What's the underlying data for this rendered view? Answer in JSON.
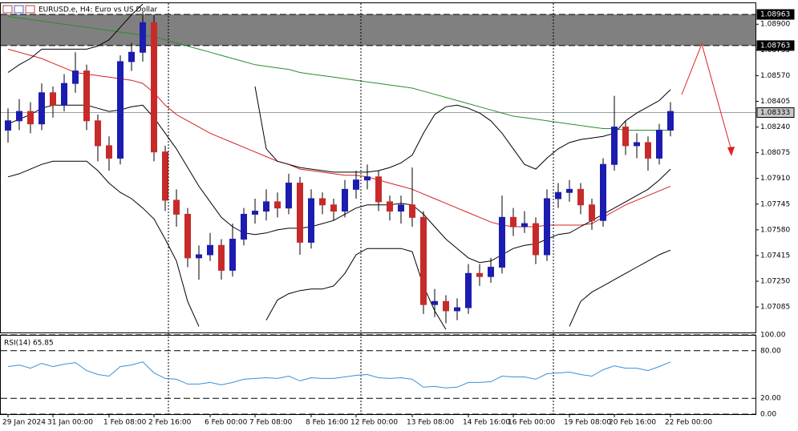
{
  "chart_data": {
    "type": "candlestick",
    "title": "EURUSD.e, H4:  Euro vs US Dollar",
    "categories": [
      "29 Jan 2024",
      null,
      null,
      null,
      "31 Jan 00:00",
      null,
      null,
      null,
      null,
      "1 Feb 08:00",
      null,
      null,
      null,
      "2 Feb 16:00",
      null,
      null,
      null,
      null,
      "6 Feb 00:00",
      null,
      null,
      null,
      "7 Feb 08:00",
      null,
      null,
      null,
      null,
      "8 Feb 16:00",
      null,
      null,
      null,
      "12 Feb 00:00",
      null,
      null,
      null,
      null,
      "13 Feb 08:00",
      null,
      null,
      null,
      null,
      "14 Feb 16:00",
      null,
      null,
      null,
      "16 Feb 00:00",
      null,
      null,
      null,
      null,
      "19 Feb 08:00",
      null,
      null,
      null,
      "20 Feb 16:00",
      null,
      null,
      null,
      null,
      "22 Feb 00:00"
    ],
    "open": [
      1.0822,
      1.0828,
      1.0834,
      1.0826,
      1.0846,
      1.0838,
      1.0852,
      1.086,
      1.0828,
      1.0812,
      1.0804,
      1.0866,
      1.0872,
      1.0891,
      1.0808,
      1.0777,
      1.0768,
      1.074,
      1.0742,
      1.0748,
      1.0732,
      1.0752,
      1.0768,
      1.077,
      1.0776,
      1.0772,
      1.0788,
      1.075,
      1.0778,
      1.0774,
      1.077,
      1.0784,
      1.079,
      1.0792,
      1.0776,
      1.077,
      1.0774,
      1.0766,
      1.071,
      1.0712,
      1.0706,
      1.0708,
      1.073,
      1.0728,
      1.0734,
      1.0766,
      1.076,
      1.0762,
      1.0742,
      1.0778,
      1.0782,
      1.0784,
      1.0774,
      1.0764,
      1.08,
      1.0824,
      1.0812,
      1.0814,
      1.0804,
      1.0822
    ],
    "high": [
      1.0836,
      1.0842,
      1.084,
      1.0852,
      1.085,
      1.0858,
      1.0872,
      1.0864,
      1.0832,
      1.0818,
      1.087,
      1.0878,
      1.0898,
      1.0896,
      1.0812,
      1.0784,
      1.0772,
      1.0748,
      1.0756,
      1.0752,
      1.0762,
      1.0772,
      1.0778,
      1.0784,
      1.0782,
      1.0794,
      1.0792,
      1.0784,
      1.0782,
      1.0778,
      1.079,
      1.0796,
      1.08,
      1.0796,
      1.078,
      1.078,
      1.0798,
      1.077,
      1.072,
      1.0716,
      1.0714,
      1.0736,
      1.0736,
      1.074,
      1.078,
      1.0772,
      1.077,
      1.0766,
      1.0784,
      1.0788,
      1.079,
      1.0788,
      1.0778,
      1.0804,
      1.0844,
      1.0828,
      1.082,
      1.0818,
      1.0826,
      1.084
    ],
    "low": [
      1.0814,
      1.0822,
      1.082,
      1.0822,
      1.083,
      1.0834,
      1.0846,
      1.0822,
      1.0802,
      1.0796,
      1.08,
      1.086,
      1.0866,
      1.0802,
      1.077,
      1.076,
      1.0734,
      1.0726,
      1.0738,
      1.0726,
      1.0728,
      1.0748,
      1.0762,
      1.0764,
      1.0766,
      1.0768,
      1.0742,
      1.0746,
      1.0768,
      1.0764,
      1.0766,
      1.0778,
      1.0784,
      1.077,
      1.0764,
      1.0762,
      1.076,
      1.0704,
      1.0702,
      1.0698,
      1.07,
      1.0704,
      1.0722,
      1.0724,
      1.073,
      1.0754,
      1.0756,
      1.0736,
      1.0738,
      1.0772,
      1.0776,
      1.0768,
      1.0758,
      1.076,
      1.0796,
      1.0806,
      1.0804,
      1.0796,
      1.08,
      1.0818
    ],
    "close": [
      1.0828,
      1.0834,
      1.0826,
      1.0846,
      1.0838,
      1.0852,
      1.086,
      1.0828,
      1.0812,
      1.0804,
      1.0866,
      1.0872,
      1.0891,
      1.0808,
      1.0777,
      1.0768,
      1.074,
      1.0742,
      1.0748,
      1.0732,
      1.0752,
      1.0768,
      1.077,
      1.0776,
      1.0772,
      1.0788,
      1.075,
      1.0778,
      1.0774,
      1.077,
      1.0784,
      1.079,
      1.0792,
      1.0776,
      1.077,
      1.0774,
      1.0766,
      1.071,
      1.0712,
      1.0706,
      1.0708,
      1.073,
      1.0728,
      1.0734,
      1.0766,
      1.076,
      1.0762,
      1.0742,
      1.0778,
      1.0782,
      1.0784,
      1.0774,
      1.0764,
      1.08,
      1.0824,
      1.0812,
      1.0814,
      1.0804,
      1.0822,
      1.0834
    ],
    "up_color": "#1c1cb0",
    "down_color": "#c82a2a",
    "lines": [
      {
        "color": "#2e8b2e",
        "values": [
          1.0895,
          1.0894,
          1.0893,
          1.0892,
          1.0891,
          1.089,
          1.0889,
          1.0888,
          1.0887,
          1.0886,
          1.0885,
          1.0884,
          1.0883,
          1.0882,
          1.088,
          1.0878,
          1.0876,
          1.0874,
          1.0872,
          1.087,
          1.0868,
          1.0866,
          1.0864,
          1.0863,
          1.0862,
          1.0861,
          1.0859,
          1.0858,
          1.0857,
          1.0856,
          1.0855,
          1.0854,
          1.0853,
          1.0852,
          1.0851,
          1.085,
          1.0849,
          1.0847,
          1.0845,
          1.0843,
          1.0841,
          1.0839,
          1.0837,
          1.0835,
          1.0833,
          1.0831,
          1.083,
          1.0829,
          1.0828,
          1.0827,
          1.0826,
          1.0825,
          1.0824,
          1.0823,
          1.0823,
          1.0822,
          1.0822,
          1.0822,
          1.0822,
          1.0822
        ]
      },
      {
        "color": "#d42020",
        "values": [
          1.0874,
          1.0872,
          1.087,
          1.0868,
          1.0865,
          1.0862,
          1.0859,
          1.0858,
          1.0857,
          1.0856,
          1.0855,
          1.0854,
          1.0852,
          1.0846,
          1.0838,
          1.0832,
          1.0828,
          1.0824,
          1.082,
          1.0817,
          1.0814,
          1.0811,
          1.0808,
          1.0805,
          1.0802,
          1.08,
          1.0797,
          1.0796,
          1.0795,
          1.0794,
          1.0793,
          1.0793,
          1.0792,
          1.079,
          1.0788,
          1.0786,
          1.0784,
          1.0781,
          1.0778,
          1.0775,
          1.0772,
          1.0769,
          1.0766,
          1.0763,
          1.0761,
          1.076,
          1.076,
          1.076,
          1.0761,
          1.0761,
          1.0761,
          1.0761,
          1.0762,
          1.0766,
          1.077,
          1.0774,
          1.0777,
          1.078,
          1.0783,
          1.0786
        ]
      },
      {
        "color": "#000000",
        "values": [
          1.0859,
          1.0864,
          1.0868,
          1.0874,
          1.0874,
          1.0874,
          1.0874,
          1.0874,
          1.0876,
          1.088,
          1.0888,
          1.0896,
          1.0903,
          null,
          null,
          null,
          null,
          null,
          null,
          null,
          null,
          null,
          1.085,
          1.081,
          1.0802,
          1.08,
          1.0798,
          1.0797,
          1.0796,
          1.0795,
          1.0795,
          1.0795,
          1.0795,
          1.0796,
          1.0798,
          1.0801,
          1.0806,
          1.082,
          1.0832,
          1.0837,
          1.0838,
          1.0836,
          1.0833,
          1.0828,
          1.082,
          1.081,
          1.08,
          1.0797,
          1.0804,
          1.081,
          1.0814,
          1.0816,
          1.0817,
          1.0818,
          1.082,
          1.0828,
          1.0833,
          1.0837,
          1.0841,
          1.0848
        ]
      },
      {
        "color": "#000000",
        "values": [
          1.0826,
          1.0829,
          1.0832,
          1.0836,
          1.0838,
          1.0838,
          1.0838,
          1.0838,
          1.0836,
          1.0834,
          1.0835,
          1.0837,
          1.0838,
          1.083,
          1.082,
          1.081,
          1.0798,
          1.0786,
          1.0776,
          1.0766,
          1.076,
          1.0756,
          1.0755,
          1.0756,
          1.0758,
          1.0759,
          1.0759,
          1.076,
          1.0762,
          1.0764,
          1.0768,
          1.0772,
          1.0774,
          1.0774,
          1.0774,
          1.0775,
          1.0774,
          1.0768,
          1.076,
          1.0752,
          1.0746,
          1.074,
          1.0737,
          1.0738,
          1.0742,
          1.0746,
          1.0748,
          1.0749,
          1.0752,
          1.0755,
          1.0756,
          1.076,
          1.0764,
          1.0768,
          1.0772,
          1.0776,
          1.078,
          1.0784,
          1.079,
          1.0797
        ]
      },
      {
        "color": "#000000",
        "values": [
          1.0792,
          1.0794,
          1.0797,
          1.08,
          1.0802,
          1.0802,
          1.0802,
          1.0802,
          1.0796,
          1.0788,
          1.0782,
          1.0778,
          1.0772,
          1.0765,
          1.0752,
          1.0738,
          1.0712,
          1.0696,
          null,
          null,
          null,
          null,
          null,
          1.07,
          1.0713,
          1.0717,
          1.0719,
          1.072,
          1.072,
          1.0722,
          1.073,
          1.0742,
          1.0746,
          1.0746,
          1.0746,
          1.0746,
          1.0744,
          1.0722,
          1.0706,
          1.0694,
          null,
          null,
          null,
          null,
          null,
          null,
          null,
          null,
          null,
          null,
          1.0696,
          1.0712,
          1.0718,
          1.0722,
          1.0726,
          1.073,
          1.0734,
          1.0738,
          1.0742,
          1.0745
        ]
      }
    ],
    "ylim": [
      1.06921,
      1.09035
    ],
    "yticks": [
      {
        "value": 1.089,
        "label": "1.08900"
      },
      {
        "value": 1.08735,
        "label": "1.08735"
      },
      {
        "value": 1.0857,
        "label": "1.08570"
      },
      {
        "value": 1.08405,
        "label": "1.08405"
      },
      {
        "value": 1.0824,
        "label": "1.08240"
      },
      {
        "value": 1.08075,
        "label": "1.08075"
      },
      {
        "value": 1.0791,
        "label": "1.07910"
      },
      {
        "value": 1.07745,
        "label": "1.07745"
      },
      {
        "value": 1.0758,
        "label": "1.07580"
      },
      {
        "value": 1.07415,
        "label": "1.07415"
      },
      {
        "value": 1.0725,
        "label": "1.07250"
      },
      {
        "value": 1.07085,
        "label": "1.07085"
      }
    ],
    "price_markers": [
      {
        "value": 1.08963,
        "label": "1.08963"
      },
      {
        "value": 1.08763,
        "label": "1.08763"
      },
      {
        "value": 1.08333,
        "label": "1.08333"
      }
    ],
    "rsi": {
      "label": "RSI(14) 65.85",
      "color": "#3a8fd6",
      "values": [
        60,
        62,
        58,
        64,
        60,
        63,
        65,
        55,
        50,
        48,
        60,
        62,
        66,
        52,
        45,
        44,
        38,
        38,
        40,
        37,
        40,
        44,
        45,
        46,
        45,
        48,
        42,
        46,
        45,
        45,
        47,
        49,
        50,
        46,
        45,
        46,
        44,
        34,
        35,
        33,
        34,
        40,
        40,
        41,
        48,
        47,
        47,
        44,
        51,
        52,
        53,
        50,
        48,
        56,
        61,
        58,
        58,
        55,
        60,
        65.85
      ],
      "ylim": [
        0,
        100
      ],
      "yticks": [
        {
          "value": 100,
          "label": "100.00"
        },
        {
          "value": 80,
          "label": "80.00"
        },
        {
          "value": 20,
          "label": "20.00"
        },
        {
          "value": 0,
          "label": "0.00"
        }
      ]
    }
  }
}
